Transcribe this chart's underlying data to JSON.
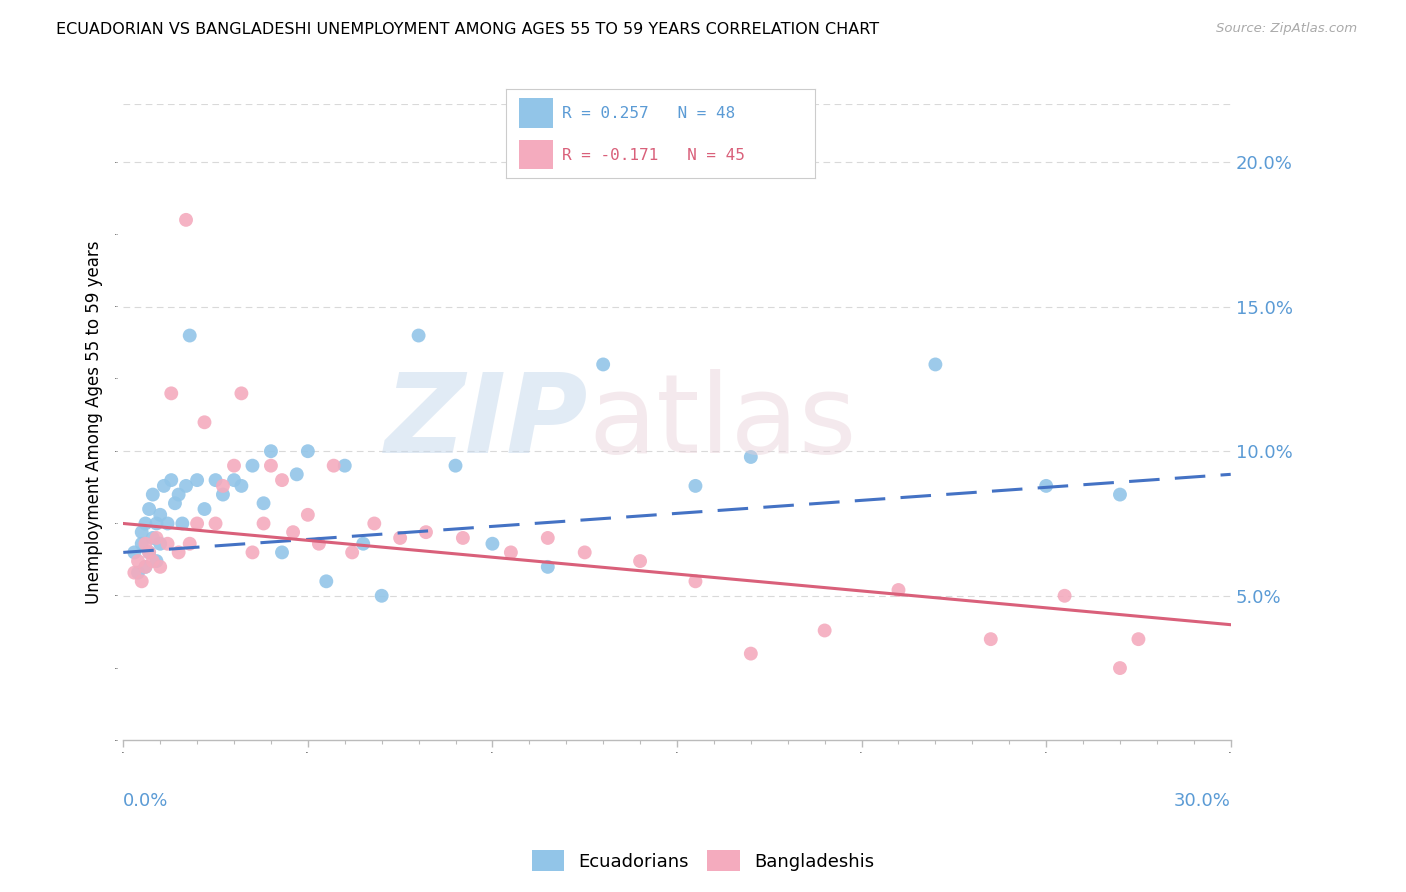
{
  "title": "ECUADORIAN VS BANGLADESHI UNEMPLOYMENT AMONG AGES 55 TO 59 YEARS CORRELATION CHART",
  "source": "Source: ZipAtlas.com",
  "ylabel": "Unemployment Among Ages 55 to 59 years",
  "xlim": [
    0.0,
    0.3
  ],
  "ylim": [
    0.0,
    0.22
  ],
  "ytick_labels": [
    "5.0%",
    "10.0%",
    "15.0%",
    "20.0%"
  ],
  "ytick_values": [
    0.05,
    0.1,
    0.15,
    0.2
  ],
  "xtick_labels": [
    "0.0%",
    "30.0%"
  ],
  "ecuadorians_color": "#92C5E8",
  "bangladeshis_color": "#F4ABBE",
  "trend_blue_color": "#4472C4",
  "trend_pink_color": "#D9607A",
  "legend_box_color": "#DDDDDD",
  "axis_color": "#BBBBBB",
  "grid_color": "#D9D9D9",
  "text_color_blue": "#5B9BD5",
  "text_color_pink": "#D9607A",
  "watermark_zip_color": "#C8D8E8",
  "watermark_atlas_color": "#D8C8D0",
  "ecuadorians_x": [
    0.003,
    0.004,
    0.005,
    0.005,
    0.006,
    0.006,
    0.007,
    0.007,
    0.008,
    0.008,
    0.009,
    0.009,
    0.01,
    0.01,
    0.011,
    0.012,
    0.013,
    0.014,
    0.015,
    0.016,
    0.017,
    0.018,
    0.02,
    0.022,
    0.025,
    0.027,
    0.03,
    0.032,
    0.035,
    0.038,
    0.04,
    0.043,
    0.047,
    0.05,
    0.055,
    0.06,
    0.065,
    0.07,
    0.08,
    0.09,
    0.1,
    0.115,
    0.13,
    0.155,
    0.17,
    0.22,
    0.25,
    0.27
  ],
  "ecuadorians_y": [
    0.065,
    0.058,
    0.068,
    0.072,
    0.06,
    0.075,
    0.065,
    0.08,
    0.07,
    0.085,
    0.062,
    0.075,
    0.068,
    0.078,
    0.088,
    0.075,
    0.09,
    0.082,
    0.085,
    0.075,
    0.088,
    0.14,
    0.09,
    0.08,
    0.09,
    0.085,
    0.09,
    0.088,
    0.095,
    0.082,
    0.1,
    0.065,
    0.092,
    0.1,
    0.055,
    0.095,
    0.068,
    0.05,
    0.14,
    0.095,
    0.068,
    0.06,
    0.13,
    0.088,
    0.098,
    0.13,
    0.088,
    0.085
  ],
  "bangladeshis_x": [
    0.003,
    0.004,
    0.005,
    0.006,
    0.006,
    0.007,
    0.008,
    0.009,
    0.01,
    0.012,
    0.013,
    0.015,
    0.017,
    0.018,
    0.02,
    0.022,
    0.025,
    0.027,
    0.03,
    0.032,
    0.035,
    0.038,
    0.04,
    0.043,
    0.046,
    0.05,
    0.053,
    0.057,
    0.062,
    0.068,
    0.075,
    0.082,
    0.092,
    0.105,
    0.115,
    0.125,
    0.14,
    0.155,
    0.17,
    0.19,
    0.21,
    0.235,
    0.255,
    0.27,
    0.275
  ],
  "bangladeshis_y": [
    0.058,
    0.062,
    0.055,
    0.06,
    0.068,
    0.065,
    0.062,
    0.07,
    0.06,
    0.068,
    0.12,
    0.065,
    0.18,
    0.068,
    0.075,
    0.11,
    0.075,
    0.088,
    0.095,
    0.12,
    0.065,
    0.075,
    0.095,
    0.09,
    0.072,
    0.078,
    0.068,
    0.095,
    0.065,
    0.075,
    0.07,
    0.072,
    0.07,
    0.065,
    0.07,
    0.065,
    0.062,
    0.055,
    0.03,
    0.038,
    0.052,
    0.035,
    0.05,
    0.025,
    0.035
  ],
  "trend_blue_x0": 0.0,
  "trend_blue_y0": 0.065,
  "trend_blue_x1": 0.3,
  "trend_blue_y1": 0.092,
  "trend_pink_x0": 0.0,
  "trend_pink_y0": 0.075,
  "trend_pink_x1": 0.3,
  "trend_pink_y1": 0.04
}
